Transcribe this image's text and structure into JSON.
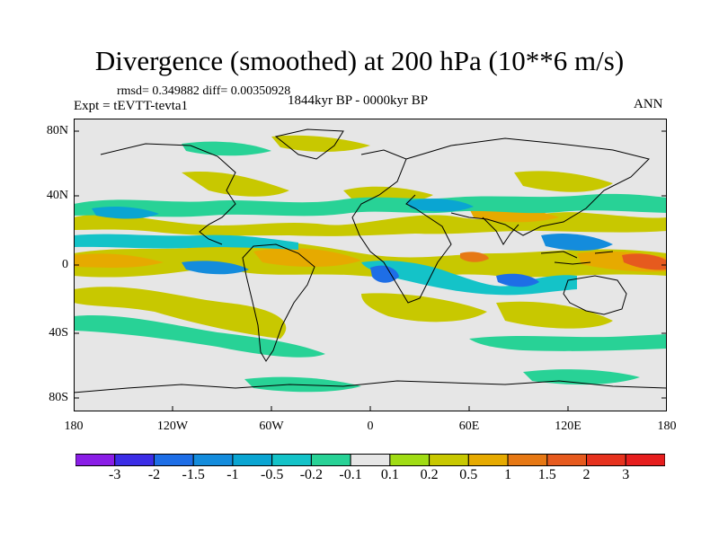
{
  "title": "Divergence (smoothed) at 200 hPa (10**6 m/s)",
  "stats": "rmsd= 0.349882 diff= 0.00350928",
  "experiment": "Expt = tEVTT-tevta1",
  "period": "1844kyr BP - 0000kyr BP",
  "season": "ANN",
  "map": {
    "lat_labels": [
      "80N",
      "40N",
      "0",
      "40S",
      "80S"
    ],
    "lon_labels": [
      "180",
      "120W",
      "60W",
      "0",
      "60E",
      "120E",
      "180"
    ],
    "background_color": "#e6e6e6"
  },
  "colorbar": {
    "labels": [
      "-3",
      "-2",
      "-1.5",
      "-1",
      "-0.5",
      "-0.2",
      "-0.1",
      "0.1",
      "0.2",
      "0.5",
      "1",
      "1.5",
      "2",
      "3"
    ],
    "colors": [
      "#8a1ee6",
      "#3c2de6",
      "#1e6ee6",
      "#148cdc",
      "#0aa5d2",
      "#14c3c8",
      "#28d296",
      "#e6e6e6",
      "#a0dc14",
      "#c8c800",
      "#e6aa00",
      "#e67814",
      "#e65a1e",
      "#e6321e",
      "#e61e1e"
    ]
  }
}
